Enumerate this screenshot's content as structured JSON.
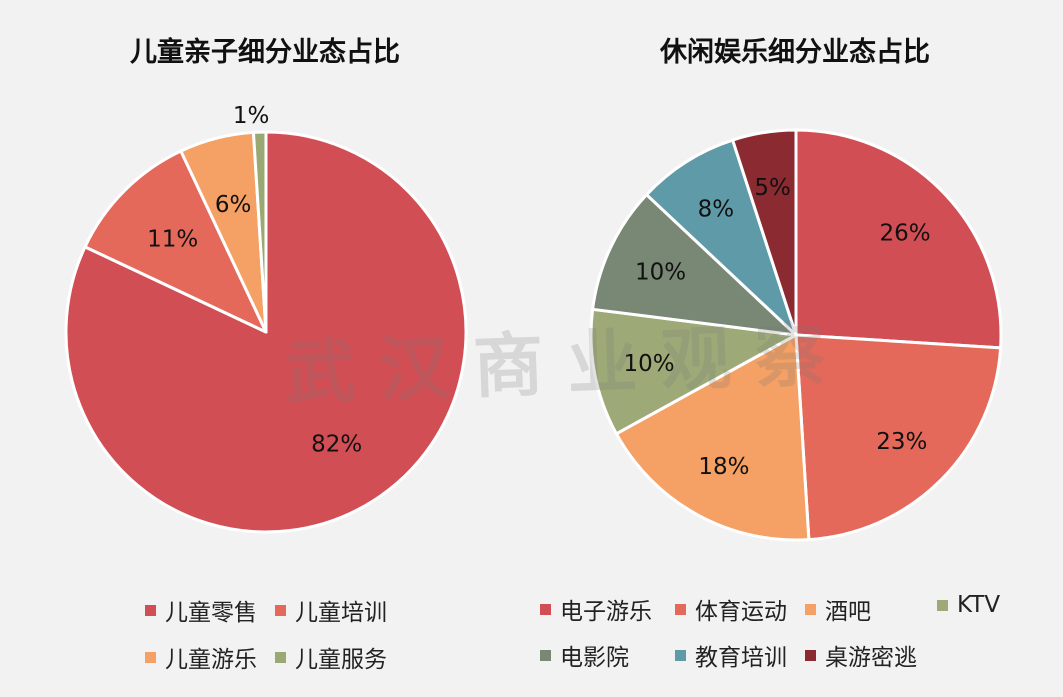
{
  "chart_data": [
    {
      "type": "pie",
      "title": "儿童亲子细分业态占比",
      "slices": [
        {
          "label": "儿童零售",
          "value": 82,
          "display": "82%",
          "color": "#d24e55"
        },
        {
          "label": "儿童培训",
          "value": 11,
          "display": "11%",
          "color": "#e4695a"
        },
        {
          "label": "儿童游乐",
          "value": 6,
          "display": "6%",
          "color": "#f5a064"
        },
        {
          "label": "儿童服务",
          "value": 1,
          "display": "1%",
          "color": "#9aa874"
        }
      ]
    },
    {
      "type": "pie",
      "title": "休闲娱乐细分业态占比",
      "slices": [
        {
          "label": "电子游乐",
          "value": 26,
          "display": "26%",
          "color": "#d24e55"
        },
        {
          "label": "体育运动",
          "value": 23,
          "display": "23%",
          "color": "#e4695a"
        },
        {
          "label": "酒吧",
          "value": 18,
          "display": "18%",
          "color": "#f5a064"
        },
        {
          "label": "KTV",
          "value": 10,
          "display": "10%",
          "color": "#9daa78"
        },
        {
          "label": "电影院",
          "value": 10,
          "display": "10%",
          "color": "#798775"
        },
        {
          "label": "教育培训",
          "value": 8,
          "display": "8%",
          "color": "#5e9aa8"
        },
        {
          "label": "桌游密逃",
          "value": 5,
          "display": "5%",
          "color": "#8b2a30"
        }
      ]
    }
  ],
  "watermark": "武汉商业观察"
}
